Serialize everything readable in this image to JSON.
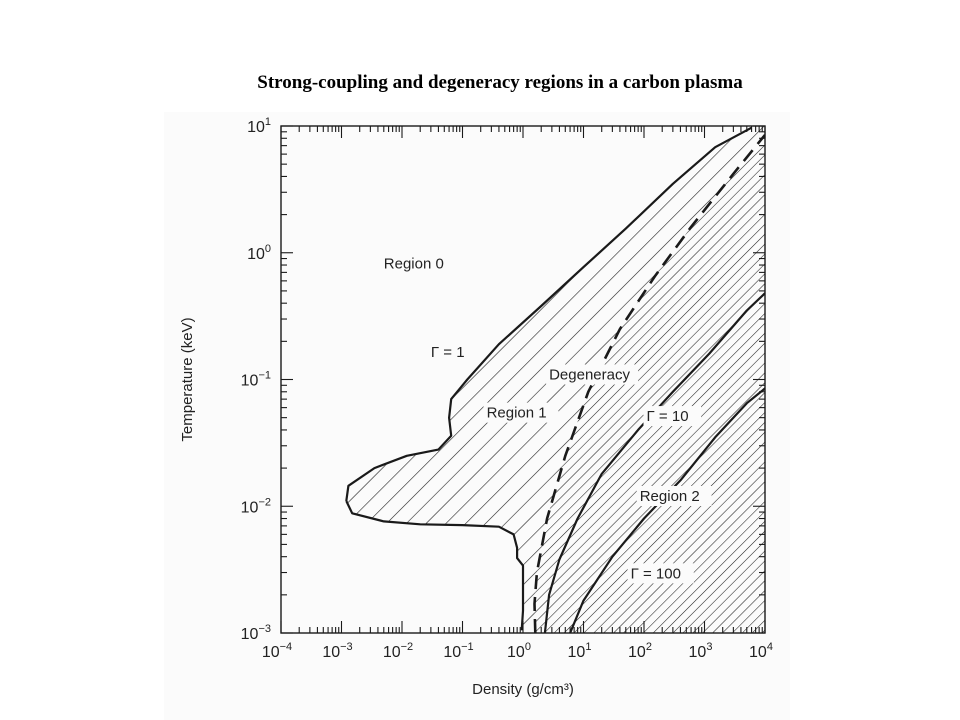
{
  "title": "Strong-coupling and degeneracy regions in a carbon plasma",
  "colors": {
    "ink": "#1a1a1a",
    "paper": "#fbfbfb",
    "page": "#ffffff"
  },
  "chart_data": {
    "type": "area",
    "title": "Strong-coupling and degeneracy regions in a carbon plasma",
    "xlabel": "Density (g/cm³)",
    "ylabel": "Temperature (keV)",
    "x_scale": "log",
    "y_scale": "log",
    "xlim": [
      0.0001,
      10000
    ],
    "ylim": [
      0.001,
      10
    ],
    "x_ticks": [
      {
        "value": 0.0001,
        "base": "10",
        "exp": "−4"
      },
      {
        "value": 0.001,
        "base": "10",
        "exp": "−3"
      },
      {
        "value": 0.01,
        "base": "10",
        "exp": "−2"
      },
      {
        "value": 0.1,
        "base": "10",
        "exp": "−1"
      },
      {
        "value": 1,
        "base": "10",
        "exp": "0"
      },
      {
        "value": 10,
        "base": "10",
        "exp": "1"
      },
      {
        "value": 100,
        "base": "10",
        "exp": "2"
      },
      {
        "value": 1000,
        "base": "10",
        "exp": "3"
      },
      {
        "value": 10000,
        "base": "10",
        "exp": "4"
      }
    ],
    "y_ticks": [
      {
        "value": 0.001,
        "base": "10",
        "exp": "−3"
      },
      {
        "value": 0.01,
        "base": "10",
        "exp": "−2"
      },
      {
        "value": 0.1,
        "base": "10",
        "exp": "−1"
      },
      {
        "value": 1,
        "base": "10",
        "exp": "0"
      },
      {
        "value": 10,
        "base": "10",
        "exp": "1"
      }
    ],
    "grid": false,
    "series": [
      {
        "name": "Γ = 1",
        "style": "solid",
        "points": [
          [
            0.0012,
            0.011
          ],
          [
            0.0015,
            0.0088
          ],
          [
            0.005,
            0.0076
          ],
          [
            0.02,
            0.0072
          ],
          [
            0.1,
            0.0071
          ],
          [
            0.4,
            0.0069
          ],
          [
            0.7,
            0.006
          ],
          [
            0.8,
            0.0047
          ],
          [
            0.8,
            0.0039
          ],
          [
            1.0,
            0.0034
          ],
          [
            1.0,
            0.0015
          ],
          [
            0.95,
            0.00105
          ]
        ]
      },
      {
        "name": "Γ = 1",
        "style": "solid",
        "points": [
          [
            0.0012,
            0.011
          ],
          [
            0.0013,
            0.0145
          ],
          [
            0.0035,
            0.02
          ],
          [
            0.012,
            0.025
          ],
          [
            0.04,
            0.028
          ],
          [
            0.065,
            0.036
          ],
          [
            0.06,
            0.05
          ],
          [
            0.065,
            0.07
          ],
          [
            0.12,
            0.1
          ],
          [
            0.4,
            0.19
          ],
          [
            2,
            0.38
          ],
          [
            10,
            0.77
          ],
          [
            50,
            1.55
          ],
          [
            300,
            3.5
          ],
          [
            1500,
            6.8
          ],
          [
            6000,
            9.7
          ]
        ]
      },
      {
        "name": "Degeneracy",
        "style": "dashed",
        "points": [
          [
            1.6,
            0.001
          ],
          [
            1.55,
            0.0017
          ],
          [
            1.7,
            0.003
          ],
          [
            2.5,
            0.008
          ],
          [
            5,
            0.025
          ],
          [
            12,
            0.08
          ],
          [
            40,
            0.25
          ],
          [
            150,
            0.65
          ],
          [
            600,
            1.6
          ],
          [
            3000,
            4.2
          ],
          [
            10000,
            8.5
          ]
        ]
      },
      {
        "name": "Γ = 10",
        "style": "solid",
        "points": [
          [
            2.3,
            0.001
          ],
          [
            2.7,
            0.002
          ],
          [
            4,
            0.0038
          ],
          [
            8,
            0.008
          ],
          [
            20,
            0.018
          ],
          [
            80,
            0.04
          ],
          [
            300,
            0.08
          ],
          [
            1200,
            0.16
          ],
          [
            5000,
            0.35
          ],
          [
            10000,
            0.48
          ]
        ]
      },
      {
        "name": "Γ = 100",
        "style": "solid",
        "points": [
          [
            6,
            0.001
          ],
          [
            10,
            0.0018
          ],
          [
            30,
            0.004
          ],
          [
            100,
            0.008
          ],
          [
            400,
            0.016
          ],
          [
            1500,
            0.035
          ],
          [
            5000,
            0.065
          ],
          [
            10000,
            0.085
          ]
        ]
      }
    ],
    "annotations": [
      {
        "text": "Region 0",
        "x": 0.005,
        "y": 0.75
      },
      {
        "text": "Γ = 1",
        "x": 0.03,
        "y": 0.15
      },
      {
        "text": "Degeneracy",
        "x": 2.7,
        "y": 0.1
      },
      {
        "text": "Region 1",
        "x": 0.25,
        "y": 0.05
      },
      {
        "text": "Γ = 10",
        "x": 110,
        "y": 0.047
      },
      {
        "text": "Region 2",
        "x": 85,
        "y": 0.011
      },
      {
        "text": "Γ = 100",
        "x": 60,
        "y": 0.0027
      }
    ]
  }
}
